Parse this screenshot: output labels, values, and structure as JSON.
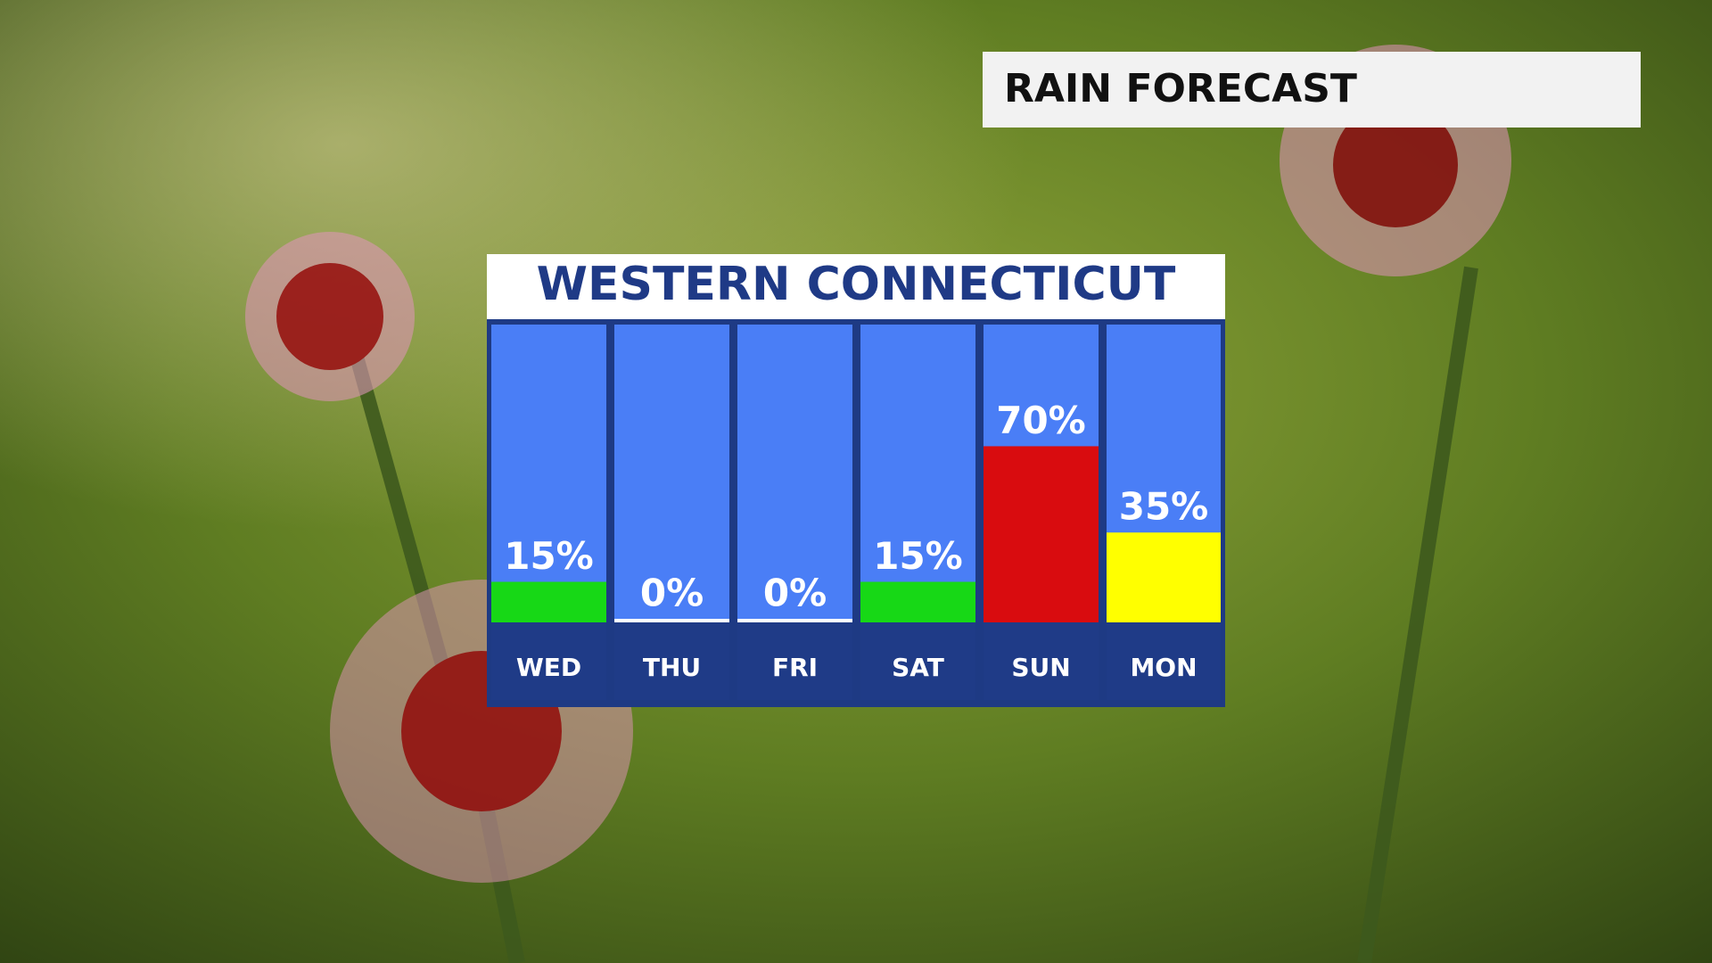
{
  "chart_data": {
    "type": "bar",
    "title": "RAIN FORECAST",
    "subtitle": "WESTERN CONNECTICUT",
    "categories": [
      "WED",
      "THU",
      "FRI",
      "SAT",
      "SUN",
      "MON"
    ],
    "values": [
      15,
      0,
      0,
      15,
      70,
      35
    ],
    "value_labels": [
      "15%",
      "0%",
      "0%",
      "15%",
      "70%",
      "35%"
    ],
    "colors": [
      "#17d816",
      "#ffffff",
      "#ffffff",
      "#17d816",
      "#d90c0f",
      "#ffff00"
    ]
  }
}
